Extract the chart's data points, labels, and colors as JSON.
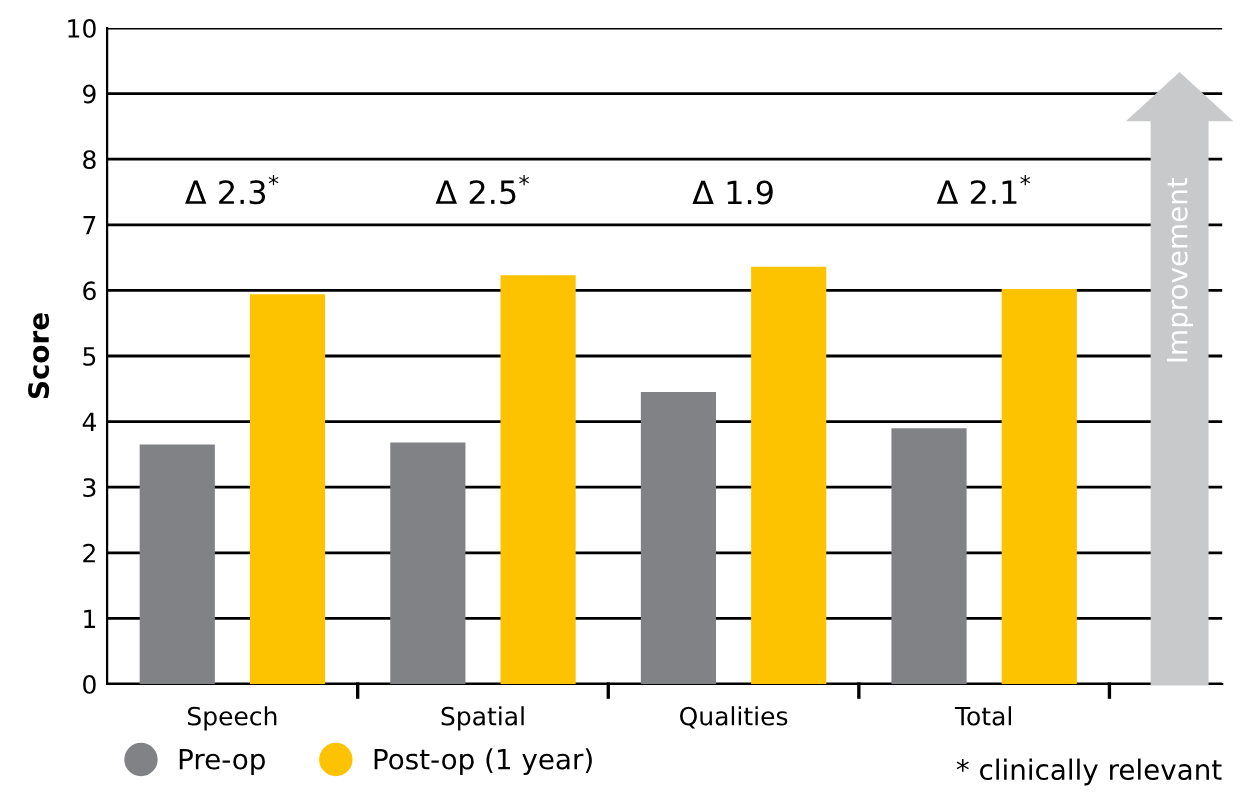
{
  "chart_data": {
    "type": "bar",
    "categories": [
      "Speech",
      "Spatial",
      "Qualities",
      "Total"
    ],
    "series": [
      {
        "name": "Pre-op",
        "color": "#808285",
        "values": [
          3.65,
          3.68,
          4.45,
          3.9
        ]
      },
      {
        "name": "Post-op (1 year)",
        "color": "#fdc300",
        "values": [
          5.94,
          6.23,
          6.36,
          6.02
        ]
      }
    ],
    "ylabel": "Score",
    "ylim": [
      0,
      10
    ],
    "yticks": [
      0,
      1,
      2,
      3,
      4,
      5,
      6,
      7,
      8,
      9,
      10
    ],
    "grid": "y",
    "legend": "bottom left",
    "marker": "circle",
    "annotations": [
      "Δ 2.3$^{*}$",
      "Δ 2.5$^{*}$",
      "Δ 1.9",
      "Δ 2.1$^{*}$",
      "Improvement",
      "* clinically relevant"
    ]
  }
}
